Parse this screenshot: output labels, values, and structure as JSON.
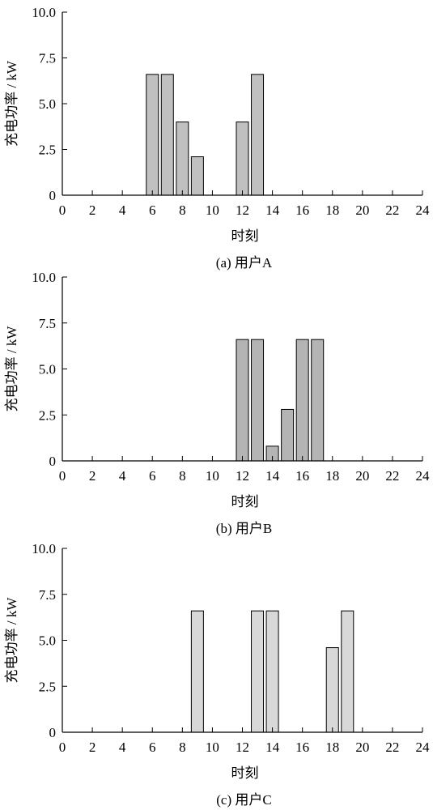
{
  "figure": {
    "colors": {
      "axis": "#000000",
      "bar_stroke": "#000000"
    }
  },
  "chart_data": [
    {
      "type": "bar",
      "caption": "(a)  用户A",
      "xlabel": "时刻",
      "ylabel": "充电功率 / kW",
      "xlim": [
        0,
        24
      ],
      "ylim": [
        0,
        10
      ],
      "xticks": [
        0,
        2,
        4,
        6,
        8,
        10,
        12,
        14,
        16,
        18,
        20,
        22,
        24
      ],
      "yticks": [
        "0",
        "2.5",
        "5.0",
        "7.5",
        "10.0"
      ],
      "bar_color": "#c0c0c0",
      "bars": [
        {
          "x": 6,
          "value": 6.6
        },
        {
          "x": 7,
          "value": 6.6
        },
        {
          "x": 8,
          "value": 4.0
        },
        {
          "x": 9,
          "value": 2.1
        },
        {
          "x": 12,
          "value": 4.0
        },
        {
          "x": 13,
          "value": 6.6
        }
      ],
      "grid": false
    },
    {
      "type": "bar",
      "caption": "(b)  用户B",
      "xlabel": "时刻",
      "ylabel": "充电功率 / kW",
      "xlim": [
        0,
        24
      ],
      "ylim": [
        0,
        10
      ],
      "xticks": [
        0,
        2,
        4,
        6,
        8,
        10,
        12,
        14,
        16,
        18,
        20,
        22,
        24
      ],
      "yticks": [
        "0",
        "2.5",
        "5.0",
        "7.5",
        "10.0"
      ],
      "bar_color": "#b4b4b4",
      "bars": [
        {
          "x": 12,
          "value": 6.6
        },
        {
          "x": 13,
          "value": 6.6
        },
        {
          "x": 14,
          "value": 0.8
        },
        {
          "x": 15,
          "value": 2.8
        },
        {
          "x": 16,
          "value": 6.6
        },
        {
          "x": 17,
          "value": 6.6
        }
      ],
      "grid": false
    },
    {
      "type": "bar",
      "caption": "(c)  用户C",
      "xlabel": "时刻",
      "ylabel": "充电功率 / kW",
      "xlim": [
        0,
        24
      ],
      "ylim": [
        0,
        10
      ],
      "xticks": [
        0,
        2,
        4,
        6,
        8,
        10,
        12,
        14,
        16,
        18,
        20,
        22,
        24
      ],
      "yticks": [
        "0",
        "2.5",
        "5.0",
        "7.5",
        "10.0"
      ],
      "bar_color": "#d8d8d8",
      "bars": [
        {
          "x": 9,
          "value": 6.6
        },
        {
          "x": 13,
          "value": 6.6
        },
        {
          "x": 14,
          "value": 6.6
        },
        {
          "x": 18,
          "value": 4.6
        },
        {
          "x": 19,
          "value": 6.6
        }
      ],
      "grid": false
    }
  ]
}
